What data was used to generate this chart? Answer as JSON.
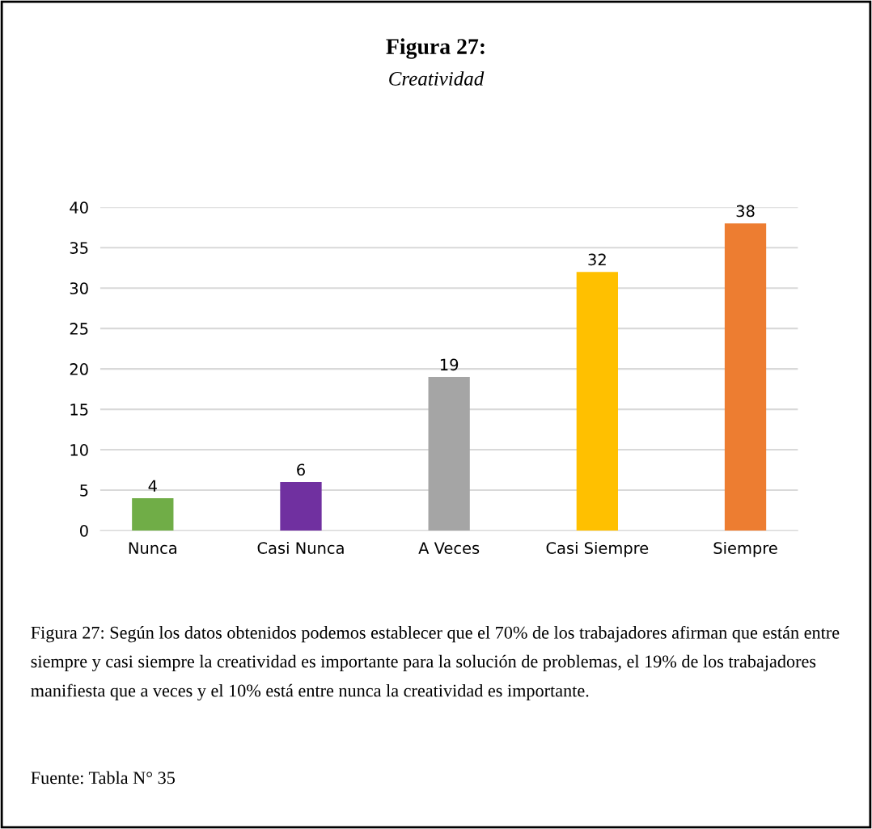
{
  "chart_data": {
    "type": "bar",
    "title": "Figura 27:",
    "subtitle": "Creatividad",
    "categories": [
      "Nunca",
      "Casi Nunca",
      "A Veces",
      "Casi Siempre",
      "Siempre"
    ],
    "values": [
      4,
      6,
      19,
      32,
      38
    ],
    "colors": [
      "#70ad47",
      "#7030a0",
      "#a5a5a5",
      "#ffc000",
      "#ed7d31"
    ],
    "ylim": [
      0,
      40
    ],
    "yticks": [
      0,
      5,
      10,
      15,
      20,
      25,
      30,
      35,
      40
    ],
    "grid": "y",
    "data_labels": true,
    "annotations": [
      "Figura 27: Según los datos obtenidos podemos establecer que el 70% de los trabajadores afirman que están entre siempre y casi siempre la creatividad es importante para la solución de problemas, el 19% de los trabajadores manifiesta que a veces y el 10% está entre nunca la creatividad es importante.",
      "Fuente: Tabla N° 35"
    ]
  }
}
